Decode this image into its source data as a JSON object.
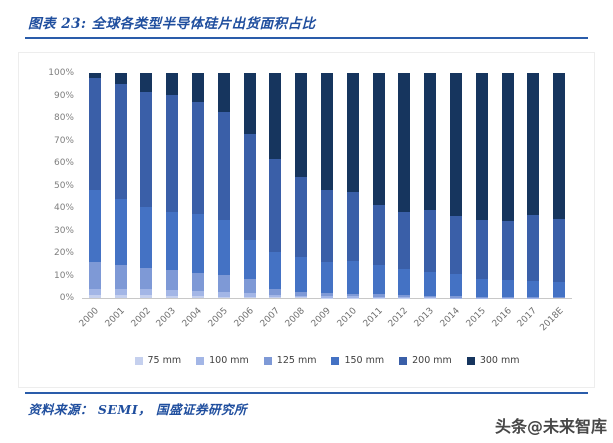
{
  "figure": {
    "title": "图表 23:  全球各类型半导体硅片出货面积占比",
    "source_note": "资料来源： SEMI， 国盛证券研究所",
    "watermark": "头条@未来智库"
  },
  "colors": {
    "title_blue": "#1F4E9E",
    "divider_blue": "#2A5CAA",
    "axis_text_gray": "#7F7F7F",
    "legend_text_gray": "#404040",
    "baseline_gray": "#C8C8C8"
  },
  "chart_data": {
    "type": "bar",
    "stacked": true,
    "unit": "percent of wafer shipment area",
    "grid": false,
    "legend_position": "bottom",
    "ylim": [
      0,
      100
    ],
    "yticks": [
      "0%",
      "10%",
      "20%",
      "30%",
      "40%",
      "50%",
      "60%",
      "70%",
      "80%",
      "90%",
      "100%"
    ],
    "categories": [
      "2000",
      "2001",
      "2002",
      "2003",
      "2004",
      "2005",
      "2006",
      "2007",
      "2008",
      "2009",
      "2010",
      "2011",
      "2012",
      "2013",
      "2014",
      "2015",
      "2016",
      "2017",
      "2018E"
    ],
    "series": [
      {
        "name": "75 mm",
        "color": "#C5D0EE",
        "values": [
          1.5,
          1.5,
          1.3,
          0.9,
          0.9,
          0.6,
          0.4,
          0.5,
          0.3,
          0.2,
          0.2,
          0.1,
          0.1,
          0.1,
          0.0,
          0.0,
          0.0,
          0.0,
          0.0
        ]
      },
      {
        "name": "100 mm",
        "color": "#A3B6E6",
        "values": [
          2.5,
          2.5,
          2.6,
          2.7,
          2.4,
          2.2,
          1.7,
          1.0,
          0.7,
          0.5,
          0.5,
          0.4,
          0.3,
          0.2,
          0.2,
          0.1,
          0.1,
          0.1,
          0.0
        ]
      },
      {
        "name": "125 mm",
        "color": "#7E99D6",
        "values": [
          11.9,
          10.5,
          9.3,
          8.8,
          7.9,
          7.4,
          6.2,
          2.4,
          1.8,
          1.4,
          1.3,
          1.1,
          0.9,
          0.7,
          0.6,
          0.5,
          0.4,
          0.3,
          0.3
        ]
      },
      {
        "name": "150 mm",
        "color": "#4472C4",
        "values": [
          32.1,
          29.5,
          27.2,
          25.8,
          26.3,
          24.3,
          17.7,
          16.5,
          15.4,
          13.9,
          14.5,
          12.9,
          11.7,
          10.6,
          10.0,
          8.0,
          7.4,
          7.2,
          6.8
        ]
      },
      {
        "name": "200 mm",
        "color": "#3A5FA8",
        "values": [
          49.8,
          51.0,
          51.0,
          52.2,
          49.6,
          48.2,
          47.0,
          41.5,
          35.6,
          31.9,
          30.6,
          26.7,
          25.2,
          27.5,
          25.6,
          26.1,
          26.3,
          29.3,
          28.0
        ]
      },
      {
        "name": "300 mm",
        "color": "#16355E",
        "values": [
          2.2,
          5.0,
          8.6,
          9.6,
          12.9,
          17.3,
          27.0,
          38.1,
          46.2,
          52.1,
          52.9,
          58.8,
          61.8,
          60.9,
          63.6,
          65.3,
          65.8,
          63.1,
          64.9
        ]
      }
    ]
  }
}
